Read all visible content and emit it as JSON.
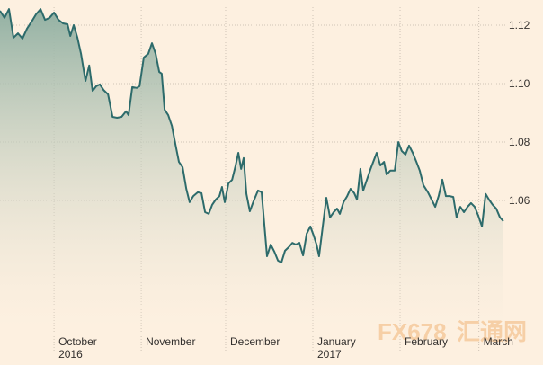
{
  "chart_data": {
    "type": "area",
    "x": [
      -19.2,
      -17.6,
      -16.0,
      -14.4,
      -12.8,
      -11.2,
      -9.6,
      -8.0,
      -6.4,
      -4.8,
      -3.2,
      -1.6,
      0,
      1.6,
      3.2,
      4.8,
      5.8,
      7.0,
      8.3,
      9.6,
      11.2,
      12.5,
      13.7,
      15.0,
      16.3,
      17.6,
      19.2,
      20.8,
      22.4,
      24.0,
      25.6,
      26.5,
      27.8,
      29.4,
      30.4,
      31.9,
      33.5,
      34.8,
      36.1,
      37.4,
      38.3,
      39.3,
      40.6,
      41.9,
      43.1,
      44.4,
      45.7,
      47.0,
      48.2,
      49.5,
      51.1,
      52.4,
      53.7,
      55.0,
      56.2,
      57.5,
      58.8,
      59.7,
      60.7,
      62.0,
      63.3,
      64.5,
      65.5,
      66.5,
      67.4,
      68.4,
      69.6,
      70.9,
      72.5,
      73.8,
      74.8,
      75.7,
      77.0,
      78.3,
      79.6,
      80.8,
      82.1,
      83.4,
      84.7,
      85.9,
      87.2,
      88.5,
      89.8,
      91.1,
      92.3,
      93.3,
      94.2,
      95.5,
      96.8,
      98.1,
      99.4,
      100.6,
      101.6,
      102.9,
      104.2,
      105.4,
      106.7,
      107.7,
      108.9,
      109.9,
      111.2,
      112.5,
      113.7,
      114.7,
      116.0,
      117.3,
      118.2,
      119.5,
      121.1,
      122.4,
      123.6,
      124.9,
      126.2,
      127.5,
      128.8,
      130.0,
      131.3,
      132.9,
      134.2,
      135.5,
      136.7,
      138.0,
      139.3,
      140.6,
      141.9,
      143.1,
      144.4,
      145.7,
      147.0,
      148.2,
      149.5,
      150.8,
      152.1,
      153.4,
      154.6,
      155.9,
      157.2,
      158.5,
      159.7
    ],
    "values": [
      1.1249,
      1.1225,
      1.1255,
      1.1157,
      1.1172,
      1.1154,
      1.1188,
      1.1212,
      1.1237,
      1.1255,
      1.1218,
      1.1225,
      1.1243,
      1.1218,
      1.1206,
      1.1203,
      1.1163,
      1.12,
      1.1157,
      1.1102,
      1.1009,
      1.1062,
      1.0975,
      1.0991,
      1.0997,
      1.0978,
      1.0963,
      1.0886,
      1.0883,
      1.0886,
      1.0905,
      1.0892,
      1.0988,
      1.0985,
      1.0991,
      1.1089,
      1.1102,
      1.1138,
      1.1102,
      1.104,
      1.1034,
      1.0911,
      1.0892,
      1.0855,
      1.0794,
      1.0732,
      1.0714,
      1.064,
      1.0594,
      1.0615,
      1.0628,
      1.0625,
      1.056,
      1.0554,
      1.0585,
      1.0603,
      1.0615,
      1.0646,
      1.0594,
      1.0658,
      1.0671,
      1.0717,
      1.0763,
      1.0708,
      1.0745,
      1.0622,
      1.0563,
      1.0597,
      1.0634,
      1.0628,
      1.0511,
      1.0409,
      1.0449,
      1.0425,
      1.0394,
      1.0388,
      1.0428,
      1.044,
      1.0455,
      1.0449,
      1.0455,
      1.0412,
      1.0486,
      1.0511,
      1.048,
      1.0449,
      1.0409,
      1.0511,
      1.0609,
      1.0542,
      1.056,
      1.0572,
      1.0554,
      1.0594,
      1.0615,
      1.064,
      1.0625,
      1.0603,
      1.0708,
      1.0634,
      1.0671,
      1.0708,
      1.0738,
      1.0763,
      1.072,
      1.0732,
      1.0689,
      1.0702,
      1.0702,
      1.08,
      1.0769,
      1.0757,
      1.0788,
      1.0763,
      1.0732,
      1.0702,
      1.0652,
      1.0628,
      1.0603,
      1.0578,
      1.0615,
      1.0671,
      1.0615,
      1.0615,
      1.0612,
      1.0542,
      1.0578,
      1.056,
      1.0578,
      1.0591,
      1.0578,
      1.0548,
      1.0511,
      1.0622,
      1.0603,
      1.0585,
      1.0572,
      1.0542,
      1.0529
    ],
    "color": "#2d6b6b",
    "xlim": [
      -19.2,
      173.8
    ],
    "xticks": [
      {
        "value": 0,
        "label": "October 2016"
      },
      {
        "value": 31,
        "label": "November"
      },
      {
        "value": 61,
        "label": "December"
      },
      {
        "value": 92,
        "label": "January 2017"
      },
      {
        "value": 123,
        "label": "February"
      },
      {
        "value": 151,
        "label": "March"
      }
    ],
    "ylim": [
      1.0163,
      1.1286
    ],
    "yticks": [
      {
        "value": 1.06,
        "label": "1.06"
      },
      {
        "value": 1.08,
        "label": "1.08"
      },
      {
        "value": 1.1,
        "label": "1.10"
      },
      {
        "value": 1.12,
        "label": "1.12"
      }
    ],
    "grid": true
  },
  "watermark": {
    "brand": "FX678",
    "name": "汇通网"
  }
}
